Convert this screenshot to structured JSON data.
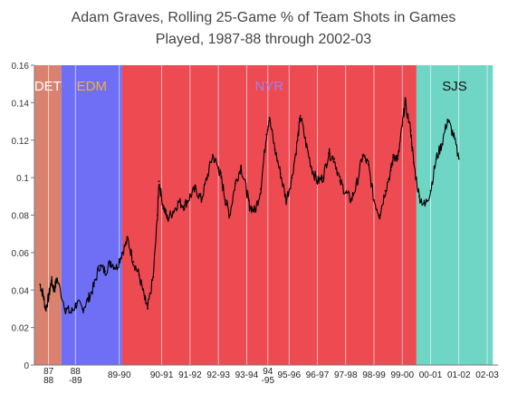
{
  "chart_data": {
    "type": "line",
    "title_lines": [
      "Adam Graves, Rolling 25-Game % of Team Shots in Games",
      "Played, 1987-88 through 2002-03"
    ],
    "ylim": [
      0,
      0.16
    ],
    "yticks": [
      "0",
      "0.02",
      "0.04",
      "0.06",
      "0.08",
      "0.1",
      "0.12",
      "0.14",
      "0.16"
    ],
    "grid": "vertical",
    "xlim": [
      0,
      16
    ],
    "season_ticks": [
      {
        "label": "87\n88",
        "x": 0.5
      },
      {
        "label": "88\n-89",
        "x": 1.45
      },
      {
        "label": "89-90",
        "x": 3.0
      },
      {
        "label": "90-91",
        "x": 4.5
      },
      {
        "label": "91-92",
        "x": 5.5
      },
      {
        "label": "92-93",
        "x": 6.5
      },
      {
        "label": "93-94",
        "x": 7.5
      },
      {
        "label": "94\n-95",
        "x": 8.25
      },
      {
        "label": "95-96",
        "x": 9.0
      },
      {
        "label": "96-97",
        "x": 10.0
      },
      {
        "label": "97-98",
        "x": 11.0
      },
      {
        "label": "98-99",
        "x": 12.0
      },
      {
        "label": "99-00",
        "x": 13.0
      },
      {
        "label": "00-01",
        "x": 14.0
      },
      {
        "label": "01-02",
        "x": 15.0
      },
      {
        "label": "02-03",
        "x": 16.0
      }
    ],
    "teams": [
      {
        "label": "DET",
        "start": 0.0,
        "end": 0.95,
        "band_color": "#d9826f",
        "text_color": "#ffffff"
      },
      {
        "label": "EDM",
        "start": 0.95,
        "end": 3.1,
        "band_color": "#6f6ff5",
        "text_color": "#f0b040"
      },
      {
        "label": "NYR",
        "start": 3.1,
        "end": 13.5,
        "band_color": "#ee4a52",
        "text_color": "#9f7ff0"
      },
      {
        "label": "SJS",
        "start": 13.5,
        "end": 16.2,
        "band_color": "#6fd6c5",
        "text_color": "#111111"
      }
    ],
    "series": [
      {
        "values": [
          [
            0.2,
            0.043
          ],
          [
            0.3,
            0.038
          ],
          [
            0.4,
            0.03
          ],
          [
            0.5,
            0.036
          ],
          [
            0.6,
            0.045
          ],
          [
            0.7,
            0.04
          ],
          [
            0.8,
            0.046
          ],
          [
            1.1,
            0.03
          ],
          [
            1.3,
            0.028
          ],
          [
            1.5,
            0.033
          ],
          [
            1.7,
            0.03
          ],
          [
            1.9,
            0.035
          ],
          [
            2.1,
            0.042
          ],
          [
            2.3,
            0.053
          ],
          [
            2.5,
            0.05
          ],
          [
            2.7,
            0.055
          ],
          [
            2.9,
            0.052
          ],
          [
            3.1,
            0.06
          ],
          [
            3.3,
            0.067
          ],
          [
            3.5,
            0.055
          ],
          [
            3.7,
            0.048
          ],
          [
            3.9,
            0.035
          ],
          [
            4.0,
            0.03
          ],
          [
            4.2,
            0.047
          ],
          [
            4.35,
            0.08
          ],
          [
            4.4,
            0.098
          ],
          [
            4.55,
            0.085
          ],
          [
            4.7,
            0.078
          ],
          [
            4.9,
            0.082
          ],
          [
            5.1,
            0.087
          ],
          [
            5.3,
            0.085
          ],
          [
            5.5,
            0.09
          ],
          [
            5.7,
            0.094
          ],
          [
            5.9,
            0.088
          ],
          [
            6.1,
            0.1
          ],
          [
            6.3,
            0.112
          ],
          [
            6.5,
            0.105
          ],
          [
            6.6,
            0.1
          ],
          [
            6.75,
            0.088
          ],
          [
            6.9,
            0.08
          ],
          [
            7.1,
            0.097
          ],
          [
            7.3,
            0.106
          ],
          [
            7.5,
            0.093
          ],
          [
            7.6,
            0.085
          ],
          [
            7.8,
            0.082
          ],
          [
            8.0,
            0.094
          ],
          [
            8.2,
            0.123
          ],
          [
            8.3,
            0.132
          ],
          [
            8.5,
            0.115
          ],
          [
            8.7,
            0.102
          ],
          [
            8.9,
            0.088
          ],
          [
            9.1,
            0.1
          ],
          [
            9.3,
            0.12
          ],
          [
            9.4,
            0.133
          ],
          [
            9.6,
            0.118
          ],
          [
            9.8,
            0.105
          ],
          [
            10.0,
            0.098
          ],
          [
            10.2,
            0.1
          ],
          [
            10.4,
            0.113
          ],
          [
            10.6,
            0.11
          ],
          [
            10.8,
            0.098
          ],
          [
            11.0,
            0.092
          ],
          [
            11.2,
            0.088
          ],
          [
            11.4,
            0.097
          ],
          [
            11.6,
            0.112
          ],
          [
            11.8,
            0.107
          ],
          [
            12.0,
            0.088
          ],
          [
            12.2,
            0.08
          ],
          [
            12.4,
            0.093
          ],
          [
            12.6,
            0.104
          ],
          [
            12.7,
            0.112
          ],
          [
            12.85,
            0.11
          ],
          [
            13.0,
            0.128
          ],
          [
            13.1,
            0.14
          ],
          [
            13.3,
            0.125
          ],
          [
            13.4,
            0.108
          ],
          [
            13.6,
            0.09
          ],
          [
            13.8,
            0.085
          ],
          [
            14.0,
            0.093
          ],
          [
            14.2,
            0.11
          ],
          [
            14.4,
            0.118
          ],
          [
            14.6,
            0.131
          ],
          [
            14.8,
            0.123
          ],
          [
            15.0,
            0.11
          ]
        ]
      }
    ]
  }
}
